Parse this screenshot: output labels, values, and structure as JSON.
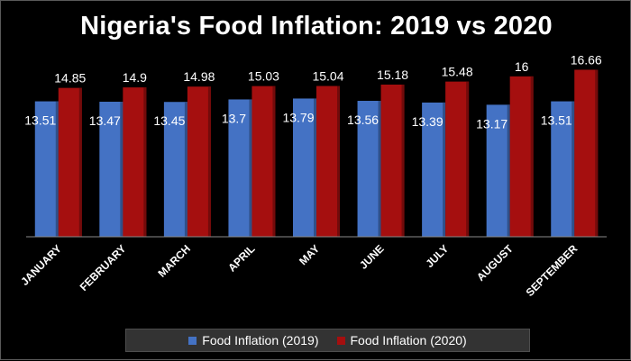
{
  "chart_data": {
    "type": "bar",
    "title": "Nigeria's Food Inflation: 2019 vs 2020",
    "categories": [
      "JANUARY",
      "FEBRUARY",
      "MARCH",
      "APRIL",
      "MAY",
      "JUNE",
      "JULY",
      "AUGUST",
      "SEPTEMBER"
    ],
    "series": [
      {
        "name": "Food Inflation (2019)",
        "color": "#4472c4",
        "values": [
          13.51,
          13.47,
          13.45,
          13.7,
          13.79,
          13.56,
          13.39,
          13.17,
          13.51
        ]
      },
      {
        "name": "Food Inflation (2020)",
        "color": "#a50f0f",
        "values": [
          14.85,
          14.9,
          14.98,
          15.03,
          15.04,
          15.18,
          15.48,
          16,
          16.66
        ]
      }
    ],
    "ylim": [
      0,
      18.5
    ],
    "xlabel": "",
    "ylabel": "",
    "legend": "bottom"
  }
}
